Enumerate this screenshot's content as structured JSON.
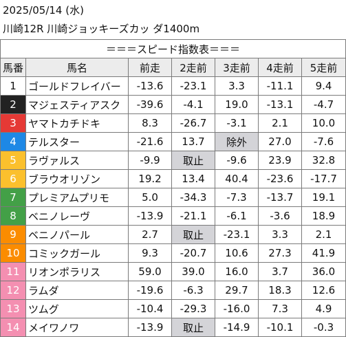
{
  "date": "2025/05/14 (水)",
  "race": "川崎12R 川崎ジョッキーズカッ ダ1400m",
  "table_title": "＝＝＝スピード指数表＝＝＝",
  "headers": [
    "馬番",
    "馬名",
    "前走",
    "2走前",
    "3走前",
    "4走前",
    "5走前"
  ],
  "rows": [
    {
      "num": "1",
      "name": "ゴールドフレイバー",
      "c": [
        "-13.6",
        "-23.1",
        "3.3",
        "-11.1",
        "9.4"
      ]
    },
    {
      "num": "2",
      "name": "マジェスティアスク",
      "c": [
        "-39.6",
        "-4.1",
        "19.0",
        "-13.1",
        "-4.7"
      ]
    },
    {
      "num": "3",
      "name": "ヤマトカチドキ",
      "c": [
        "8.3",
        "-26.7",
        "-3.1",
        "2.1",
        "10.0"
      ]
    },
    {
      "num": "4",
      "name": "テルスター",
      "c": [
        "-21.6",
        "13.7",
        "除外",
        "27.0",
        "-7.6"
      ]
    },
    {
      "num": "5",
      "name": "ラヴァルス",
      "c": [
        "-9.9",
        "取止",
        "-9.6",
        "23.9",
        "32.8"
      ]
    },
    {
      "num": "6",
      "name": "ブラウオリゾン",
      "c": [
        "19.2",
        "13.4",
        "40.4",
        "-23.6",
        "-17.7"
      ]
    },
    {
      "num": "7",
      "name": "プレミアムプリモ",
      "c": [
        "5.0",
        "-34.3",
        "-7.3",
        "-13.7",
        "19.1"
      ]
    },
    {
      "num": "8",
      "name": "ベニノレーヴ",
      "c": [
        "-13.9",
        "-21.1",
        "-6.1",
        "-3.6",
        "18.9"
      ]
    },
    {
      "num": "9",
      "name": "ベニノパール",
      "c": [
        "2.7",
        "取止",
        "-23.1",
        "3.3",
        "2.1"
      ]
    },
    {
      "num": "10",
      "name": "コミックガール",
      "c": [
        "9.3",
        "-20.7",
        "10.6",
        "27.3",
        "41.9"
      ]
    },
    {
      "num": "11",
      "name": "リオンポラリス",
      "c": [
        "59.0",
        "39.0",
        "16.0",
        "3.7",
        "36.0"
      ]
    },
    {
      "num": "12",
      "name": "ラムダ",
      "c": [
        "-19.6",
        "-6.3",
        "29.7",
        "18.3",
        "12.6"
      ]
    },
    {
      "num": "13",
      "name": "ツムグ",
      "c": [
        "-10.4",
        "-29.3",
        "-16.0",
        "7.3",
        "4.9"
      ]
    },
    {
      "num": "14",
      "name": "メイワノワ",
      "c": [
        "-13.9",
        "取止",
        "-14.9",
        "-10.1",
        "-0.3"
      ]
    }
  ],
  "colors": {
    "frame_bg": [
      "#ffffff",
      "#222222",
      "#e53935",
      "#1e88e5",
      "#fbc02d",
      "#43a047",
      "#fb8c00",
      "#f48fb1"
    ],
    "frame_fg": [
      "#111111",
      "#ffffff",
      "#ffffff",
      "#ffffff",
      "#ffffff",
      "#ffffff",
      "#ffffff",
      "#ffffff"
    ],
    "header_bg": "#ececec",
    "highlight_bg": "#d4d4d8"
  },
  "row_frame": [
    0,
    1,
    2,
    3,
    4,
    4,
    5,
    5,
    6,
    6,
    7,
    7,
    7,
    7
  ],
  "highlight_cells": [
    [
      3,
      2
    ],
    [
      4,
      1
    ],
    [
      8,
      1
    ],
    [
      13,
      1
    ]
  ]
}
